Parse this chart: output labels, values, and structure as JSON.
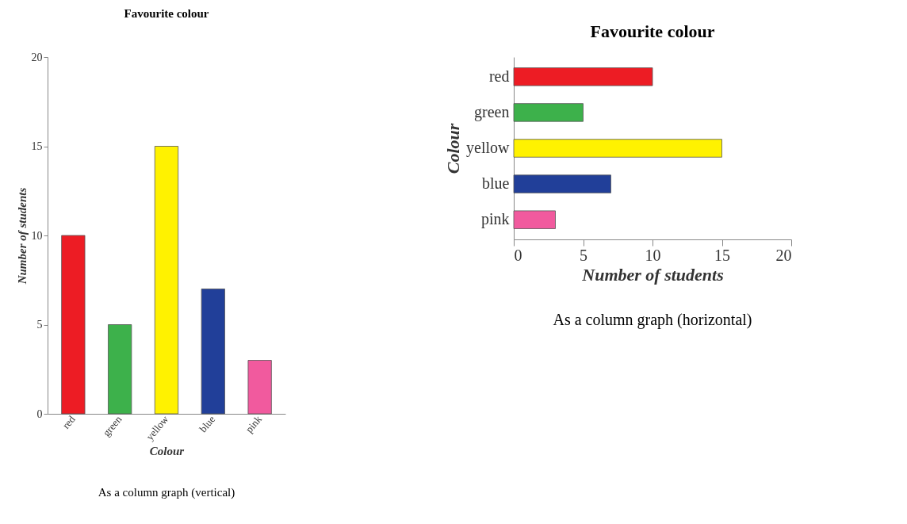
{
  "chart_data": [
    {
      "type": "bar",
      "title": "Favourite colour",
      "xlabel": "Colour",
      "ylabel": "Number of students",
      "categories": [
        "red",
        "green",
        "yellow",
        "blue",
        "pink"
      ],
      "values": [
        10,
        5,
        15,
        7,
        3
      ],
      "colors": [
        "#ed1c24",
        "#3db14b",
        "#fff200",
        "#213f99",
        "#f15a9e"
      ],
      "ylim": [
        0,
        20
      ],
      "yticks": [
        0,
        5,
        10,
        15,
        20
      ],
      "grid": false,
      "annotations": [
        "As a column graph (vertical)"
      ]
    },
    {
      "type": "bar",
      "orientation": "horizontal",
      "title": "Favourite colour",
      "xlabel": "Number of students",
      "ylabel": "Colour",
      "categories": [
        "red",
        "green",
        "yellow",
        "blue",
        "pink"
      ],
      "values": [
        10,
        5,
        15,
        7,
        3
      ],
      "colors": [
        "#ed1c24",
        "#3db14b",
        "#fff200",
        "#213f99",
        "#f15a9e"
      ],
      "xlim": [
        0,
        20
      ],
      "xticks": [
        0,
        5,
        10,
        15,
        20
      ],
      "grid": false,
      "annotations": [
        "As a column graph (horizontal)"
      ]
    }
  ]
}
